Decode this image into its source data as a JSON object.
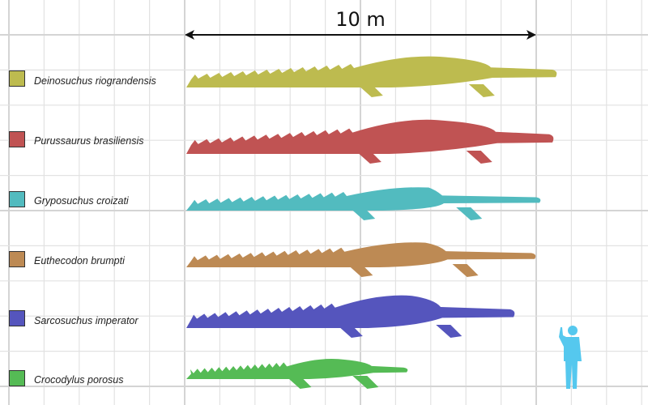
{
  "scale_bar": {
    "label": "10 m"
  },
  "species": [
    {
      "name": "Deinosuchus riograndensis",
      "color": "#bdbb4f"
    },
    {
      "name": "Purussaurus brasiliensis",
      "color": "#c05353"
    },
    {
      "name": "Gryposuchus croizati",
      "color": "#52bbbf"
    },
    {
      "name": "Euthecodon brumpti",
      "color": "#bd8a54"
    },
    {
      "name": "Sarcosuchus imperator",
      "color": "#5555bd"
    },
    {
      "name": "Crocodylus porosus",
      "color": "#55bb55"
    }
  ],
  "human": {
    "color": "#55c8ee",
    "icon": "human-silhouette"
  }
}
